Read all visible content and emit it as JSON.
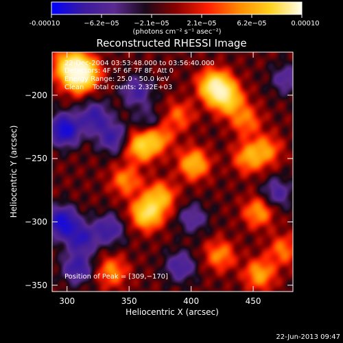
{
  "colorbar": {
    "ticks": [
      "-0.00010",
      "−6.2e−05",
      "−2.1e−05",
      "2.1e−05",
      "6.2e−05",
      "0.00010"
    ],
    "unit_label": "(photons cm⁻² s⁻¹ asec⁻²)",
    "range": [
      -0.0001,
      0.0001
    ],
    "colormap": [
      "#0000ff",
      "#3a1aa0",
      "#5b2a90",
      "#1a0a1a",
      "#8b0000",
      "#ff2000",
      "#ff8c00",
      "#ffd21e",
      "#fffef0"
    ]
  },
  "chart_data": {
    "type": "heatmap",
    "title": "Reconstructed RHESSI Image",
    "xlabel": "Heliocentric X (arcsec)",
    "ylabel": "Heliocentric Y (arcsec)",
    "xlim": [
      288,
      482
    ],
    "ylim": [
      -355,
      -166
    ],
    "xticks": [
      300,
      350,
      400,
      450
    ],
    "yticks": [
      -200,
      -250,
      -300,
      -350
    ],
    "xtick_labels": [
      "300",
      "350",
      "400",
      "450"
    ],
    "ytick_labels": [
      "−200",
      "−250",
      "−300",
      "−350"
    ],
    "bright_sources": [
      {
        "x": 312,
        "y": -181,
        "strength": 1.0
      },
      {
        "x": 301,
        "y": -176,
        "strength": 0.7
      },
      {
        "x": 308,
        "y": -186,
        "strength": 0.6
      },
      {
        "x": 418,
        "y": -192,
        "strength": 0.8
      },
      {
        "x": 424,
        "y": -197,
        "strength": 0.65
      },
      {
        "x": 431,
        "y": -205,
        "strength": 0.5
      },
      {
        "x": 360,
        "y": -240,
        "strength": 0.75
      },
      {
        "x": 373,
        "y": -233,
        "strength": 0.5
      },
      {
        "x": 364,
        "y": -293,
        "strength": 0.9
      },
      {
        "x": 375,
        "y": -280,
        "strength": 0.6
      },
      {
        "x": 347,
        "y": -267,
        "strength": 0.45
      },
      {
        "x": 402,
        "y": -254,
        "strength": 0.65
      },
      {
        "x": 446,
        "y": -249,
        "strength": 0.5
      },
      {
        "x": 460,
        "y": -243,
        "strength": 0.45
      },
      {
        "x": 454,
        "y": -292,
        "strength": 0.5
      },
      {
        "x": 455,
        "y": -341,
        "strength": 0.55
      },
      {
        "x": 423,
        "y": -326,
        "strength": 0.45
      },
      {
        "x": 336,
        "y": -339,
        "strength": 0.45
      },
      {
        "x": 444,
        "y": -220,
        "strength": 0.4
      },
      {
        "x": 390,
        "y": -216,
        "strength": 0.35
      },
      {
        "x": 474,
        "y": -322,
        "strength": 0.4
      }
    ],
    "negative_sources": [
      {
        "x": 298,
        "y": -227,
        "strength": 0.9
      },
      {
        "x": 322,
        "y": -217,
        "strength": 0.55
      },
      {
        "x": 336,
        "y": -233,
        "strength": 0.5
      },
      {
        "x": 296,
        "y": -300,
        "strength": 0.85
      },
      {
        "x": 311,
        "y": -313,
        "strength": 0.6
      },
      {
        "x": 333,
        "y": -306,
        "strength": 0.5
      },
      {
        "x": 308,
        "y": -336,
        "strength": 0.55
      },
      {
        "x": 356,
        "y": -197,
        "strength": 0.45
      },
      {
        "x": 366,
        "y": -222,
        "strength": 0.3
      },
      {
        "x": 401,
        "y": -297,
        "strength": 0.35
      },
      {
        "x": 391,
        "y": -335,
        "strength": 0.45
      },
      {
        "x": 469,
        "y": -277,
        "strength": 0.4
      },
      {
        "x": 476,
        "y": -187,
        "strength": 0.35
      }
    ]
  },
  "annotations": {
    "line1": "22-Dec-2004 03:53:48.000 to 03:56:40.000",
    "line2": "Detectors: 4F 5F 6F 7F 8F, Att 0",
    "line3": "Energy Range: 25.0 - 50.0 keV",
    "line4": "Clean    Total counts: 2.32E+03",
    "peak": "Position of Peak = [309,−170]"
  },
  "footer": {
    "timestamp": "22-Jun-2013 09:47"
  }
}
